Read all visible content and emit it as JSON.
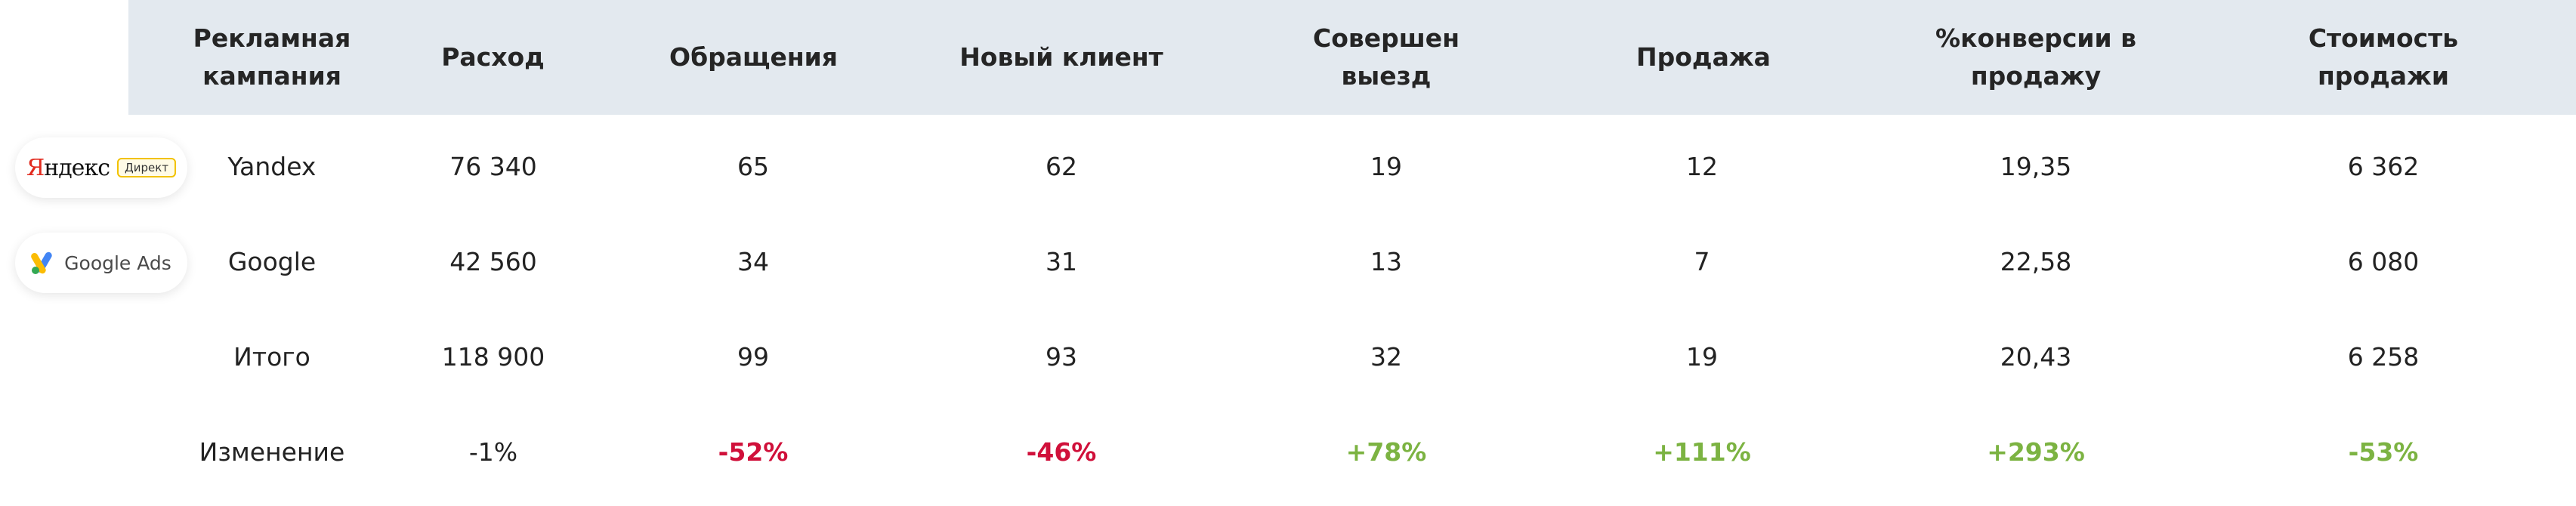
{
  "headers": [
    "Рекламная\nкампания",
    "Расход",
    "Обращения",
    "Новый клиент",
    "Совершен\nвыезд",
    "Продажа",
    "%конверсии в\nпродажу",
    "Стоимость\nпродажи"
  ],
  "logos": {
    "yandex": {
      "word": "Яндекс",
      "first": "Я",
      "rest": "ндекс",
      "tag": "Директ",
      "red": "#e22b1f",
      "yellow": "#f2c200"
    },
    "google": {
      "word": "Google Ads",
      "colors": [
        "#4285f4",
        "#fbbc04",
        "#34a853"
      ]
    }
  },
  "rows": [
    {
      "name": "Yandex",
      "values": [
        "76 340",
        "65",
        "62",
        "19",
        "12",
        "19,35",
        "6 362"
      ]
    },
    {
      "name": "Google",
      "values": [
        "42 560",
        "34",
        "31",
        "13",
        "7",
        "22,58",
        "6 080"
      ]
    },
    {
      "name": "Итого",
      "values": [
        "118 900",
        "99",
        "93",
        "32",
        "19",
        "20,43",
        "6 258"
      ]
    }
  ],
  "change": {
    "name": "Изменение",
    "values": [
      "-1%",
      "-52%",
      "-46%",
      "+78%",
      "+111%",
      "+293%",
      "-53%"
    ],
    "tones": [
      "neutral",
      "negative",
      "negative",
      "positive",
      "positive",
      "positive",
      "positive"
    ]
  },
  "colors": {
    "header_bg": "#e3e9ef",
    "negative": "#d0103a",
    "positive": "#7cb342"
  }
}
